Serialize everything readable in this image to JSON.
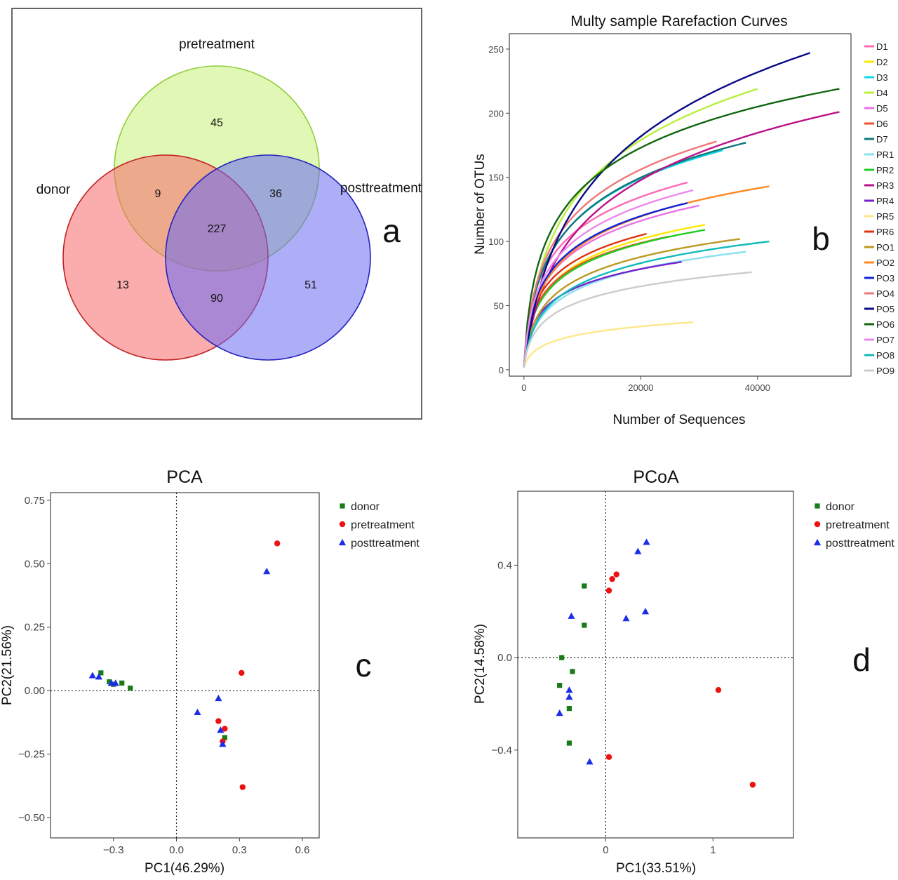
{
  "chart_data": [
    {
      "type": "venn",
      "panel_label": "a",
      "sets": [
        {
          "name": "pretreatment",
          "color": "#8fce3a",
          "fill": "#c8f07a"
        },
        {
          "name": "donor",
          "color": "#c02020",
          "fill": "#f86a6a"
        },
        {
          "name": "posttreatment",
          "color": "#2222bb",
          "fill": "#6a6af2"
        }
      ],
      "regions": {
        "pretreatment_only": "45",
        "donor_only": "13",
        "posttreatment_only": "51",
        "donor_pretreatment": "9",
        "pretreatment_posttreatment": "36",
        "donor_posttreatment": "90",
        "all_three": "227"
      }
    },
    {
      "type": "line",
      "panel_label": "b",
      "title": "Multy sample Rarefaction Curves",
      "xlabel": "Number of Sequences",
      "ylabel": "Number of OTUs",
      "xlim": [
        -2500,
        56000
      ],
      "ylim": [
        -5,
        262
      ],
      "xticks": [
        "0",
        "20000",
        "40000"
      ],
      "yticks": [
        "0",
        "50",
        "100",
        "150",
        "200",
        "250"
      ],
      "legend_position": "right",
      "series": [
        {
          "name": "D1",
          "color": "#ff69b4",
          "end_x": 28000,
          "end_y": 146,
          "k": 0.3
        },
        {
          "name": "D2",
          "color": "#ffe800",
          "end_x": 31000,
          "end_y": 113,
          "k": 0.28
        },
        {
          "name": "D3",
          "color": "#11d6e6",
          "end_x": 34000,
          "end_y": 171,
          "k": 0.38
        },
        {
          "name": "D4",
          "color": "#b8ef3a",
          "end_x": 40000,
          "end_y": 219,
          "k": 0.55
        },
        {
          "name": "D5",
          "color": "#e870e8",
          "end_x": 30000,
          "end_y": 128,
          "k": 0.3
        },
        {
          "name": "D6",
          "color": "#ee5030",
          "end_x": 25000,
          "end_y": 104,
          "k": 0.26
        },
        {
          "name": "D7",
          "color": "#117777",
          "end_x": 38000,
          "end_y": 177,
          "k": 0.36
        },
        {
          "name": "PR1",
          "color": "#88e0ee",
          "end_x": 38000,
          "end_y": 92,
          "k": 0.3
        },
        {
          "name": "PR2",
          "color": "#22cc22",
          "end_x": 31000,
          "end_y": 109,
          "k": 0.26
        },
        {
          "name": "PR3",
          "color": "#bb1188",
          "end_x": 54000,
          "end_y": 201,
          "k": 0.6
        },
        {
          "name": "PR4",
          "color": "#7722cc",
          "end_x": 27000,
          "end_y": 84,
          "k": 0.24
        },
        {
          "name": "PR5",
          "color": "#ffe888",
          "end_x": 29000,
          "end_y": 37,
          "k": 0.42
        },
        {
          "name": "PR6",
          "color": "#dd3311",
          "end_x": 21000,
          "end_y": 106,
          "k": 0.3
        },
        {
          "name": "PO1",
          "color": "#bb9922",
          "end_x": 37000,
          "end_y": 102,
          "k": 0.28
        },
        {
          "name": "PO2",
          "color": "#ff8822",
          "end_x": 42000,
          "end_y": 143,
          "k": 0.26
        },
        {
          "name": "PO3",
          "color": "#1122dd",
          "end_x": 28000,
          "end_y": 130,
          "k": 0.32
        },
        {
          "name": "PO4",
          "color": "#ee7777",
          "end_x": 33000,
          "end_y": 178,
          "k": 0.4
        },
        {
          "name": "PO5",
          "color": "#0a0a88",
          "end_x": 49000,
          "end_y": 247,
          "k": 0.9
        },
        {
          "name": "PO6",
          "color": "#116611",
          "end_x": 54000,
          "end_y": 219,
          "k": 0.2
        },
        {
          "name": "PO7",
          "color": "#ee88ee",
          "end_x": 29000,
          "end_y": 140,
          "k": 0.34
        },
        {
          "name": "PO8",
          "color": "#11bbbb",
          "end_x": 42000,
          "end_y": 100,
          "k": 0.3
        },
        {
          "name": "PO9",
          "color": "#cccccc",
          "end_x": 39000,
          "end_y": 76,
          "k": 0.24
        }
      ]
    },
    {
      "type": "scatter",
      "panel_label": "c",
      "title": "PCA",
      "xlabel": "PC1(46.29%)",
      "ylabel": "PC2(21.56%)",
      "xlim": [
        -0.6,
        0.68
      ],
      "ylim": [
        -0.58,
        0.78
      ],
      "xticks": [
        -0.3,
        0.0,
        0.3,
        0.6
      ],
      "xtick_labels": [
        "−0.3",
        "0.0",
        "0.3",
        "0.6"
      ],
      "yticks": [
        0.75,
        0.5,
        0.25,
        0.0,
        -0.25,
        -0.5
      ],
      "ytick_labels": [
        "0.75",
        "0.50",
        "0.25",
        "0.00",
        "−0.25",
        "−0.50"
      ],
      "reference_lines": {
        "x": 0,
        "y": 0
      },
      "legend_position": "top-right",
      "series": [
        {
          "name": "donor",
          "marker": "square",
          "color": "#1a7a1a",
          "points": [
            [
              -0.36,
              0.07
            ],
            [
              -0.32,
              0.035
            ],
            [
              -0.26,
              0.03
            ],
            [
              -0.3,
              0.025
            ],
            [
              -0.22,
              0.01
            ],
            [
              0.23,
              -0.185
            ]
          ]
        },
        {
          "name": "pretreatment",
          "marker": "circle",
          "color": "#ee1111",
          "points": [
            [
              0.48,
              0.58
            ],
            [
              0.31,
              0.07
            ],
            [
              0.2,
              -0.12
            ],
            [
              0.23,
              -0.15
            ],
            [
              0.22,
              -0.2
            ],
            [
              0.315,
              -0.38
            ]
          ]
        },
        {
          "name": "posttreatment",
          "marker": "triangle",
          "color": "#1a2ee8",
          "points": [
            [
              0.43,
              0.47
            ],
            [
              -0.4,
              0.06
            ],
            [
              -0.37,
              0.055
            ],
            [
              -0.31,
              0.03
            ],
            [
              -0.29,
              0.03
            ],
            [
              0.2,
              -0.03
            ],
            [
              0.1,
              -0.085
            ],
            [
              0.21,
              -0.155
            ],
            [
              0.22,
              -0.21
            ]
          ]
        }
      ]
    },
    {
      "type": "scatter",
      "panel_label": "d",
      "title": "PCoA",
      "xlabel": "PC1(33.51%)",
      "ylabel": "PC2(14.58%)",
      "xlim": [
        -0.82,
        1.75
      ],
      "ylim": [
        -0.78,
        0.72
      ],
      "xticks": [
        0,
        1
      ],
      "xtick_labels": [
        "0",
        "1"
      ],
      "yticks": [
        0.4,
        0.0,
        -0.4
      ],
      "ytick_labels": [
        "0.4",
        "0.0",
        "−0.4"
      ],
      "reference_lines": {
        "x": 0,
        "y": 0
      },
      "legend_position": "top-right",
      "series": [
        {
          "name": "donor",
          "marker": "square",
          "color": "#1a7a1a",
          "points": [
            [
              -0.2,
              0.31
            ],
            [
              -0.2,
              0.14
            ],
            [
              -0.41,
              0.0
            ],
            [
              -0.31,
              -0.06
            ],
            [
              -0.43,
              -0.12
            ],
            [
              -0.34,
              -0.22
            ],
            [
              -0.34,
              -0.37
            ]
          ]
        },
        {
          "name": "pretreatment",
          "marker": "circle",
          "color": "#ee1111",
          "points": [
            [
              0.1,
              0.36
            ],
            [
              0.06,
              0.34
            ],
            [
              0.03,
              0.29
            ],
            [
              1.05,
              -0.14
            ],
            [
              0.03,
              -0.43
            ],
            [
              1.37,
              -0.55
            ]
          ]
        },
        {
          "name": "posttreatment",
          "marker": "triangle",
          "color": "#1a2ee8",
          "points": [
            [
              0.38,
              0.5
            ],
            [
              0.3,
              0.46
            ],
            [
              -0.32,
              0.18
            ],
            [
              0.19,
              0.17
            ],
            [
              0.37,
              0.2
            ],
            [
              -0.34,
              -0.14
            ],
            [
              -0.34,
              -0.17
            ],
            [
              -0.43,
              -0.24
            ],
            [
              -0.15,
              -0.45
            ]
          ]
        }
      ]
    }
  ]
}
